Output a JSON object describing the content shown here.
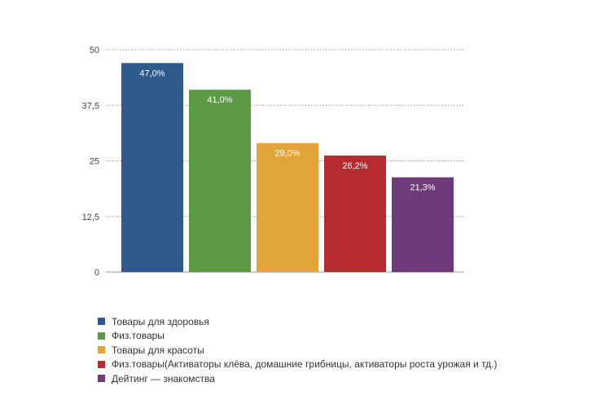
{
  "chart_data": {
    "type": "bar",
    "categories": [
      "Товары для здоровья",
      "Физ.товары",
      "Товары для красоты",
      "Физ.товары(Активаторы клёва, домашние грибницы, активаторы роста урожая и тд.)",
      "Дейтинг — знакомства"
    ],
    "values": [
      47.0,
      41.0,
      29.0,
      26.2,
      21.3
    ],
    "data_labels": [
      "47,0%",
      "41,0%",
      "29,0%",
      "26,2%",
      "21,3%"
    ],
    "colors": [
      "#2e5a8c",
      "#5c9a45",
      "#e3a53b",
      "#b72b30",
      "#6f3a7a"
    ],
    "ylim": [
      0,
      50
    ],
    "yticks": [
      0,
      12.5,
      25,
      37.5,
      50
    ],
    "ytick_labels": [
      "0",
      "12,5",
      "25",
      "37,5",
      "50"
    ],
    "grid": true,
    "legend_position": "bottom-left"
  }
}
